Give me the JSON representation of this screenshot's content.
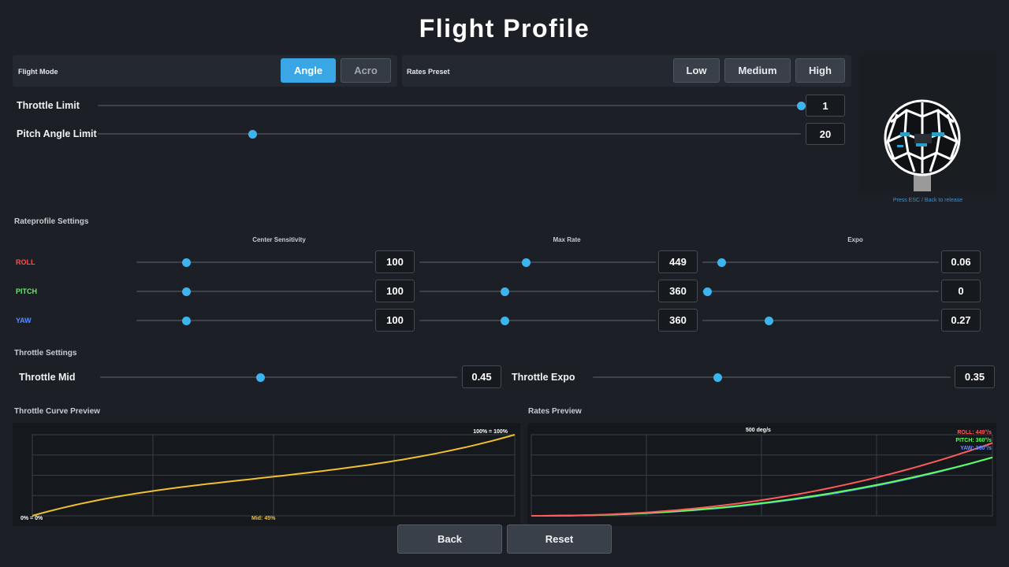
{
  "title": "Flight Profile",
  "flight_mode": {
    "label": "Flight Mode",
    "options": [
      "Angle",
      "Acro"
    ],
    "selected": "Angle"
  },
  "rates_preset": {
    "label": "Rates Preset",
    "options": [
      "Low",
      "Medium",
      "High"
    ]
  },
  "throttle_limit": {
    "label": "Throttle Limit",
    "value": "1",
    "fraction": 1.0
  },
  "pitch_angle_limit": {
    "label": "Pitch Angle Limit",
    "value": "20",
    "fraction": 0.22
  },
  "preview": {
    "hint": "Press ESC / Back to release"
  },
  "rateprofile": {
    "title": "Rateprofile Settings",
    "columns": [
      "Center Sensitivity",
      "Max Rate",
      "Expo"
    ],
    "rows": [
      {
        "name": "ROLL",
        "color": "#ff4d4d",
        "center": "100",
        "center_f": 0.21,
        "max": "449",
        "max_f": 0.45,
        "expo": "0.06",
        "expo_f": 0.08
      },
      {
        "name": "PITCH",
        "color": "#4dff4d",
        "center": "100",
        "center_f": 0.21,
        "max": "360",
        "max_f": 0.36,
        "expo": "0",
        "expo_f": 0.02
      },
      {
        "name": "YAW",
        "color": "#5a8bff",
        "center": "100",
        "center_f": 0.21,
        "max": "360",
        "max_f": 0.36,
        "expo": "0.27",
        "expo_f": 0.28
      }
    ]
  },
  "throttle": {
    "title": "Throttle Settings",
    "mid": {
      "label": "Throttle Mid",
      "value": "0.45",
      "fraction": 0.45
    },
    "expo": {
      "label": "Throttle Expo",
      "value": "0.35",
      "fraction": 0.35
    }
  },
  "throttle_curve": {
    "title": "Throttle Curve Preview",
    "top_label": "100% = 100%",
    "bottom_label": "0% = 0%",
    "mid_label": "Mid: 45%",
    "curve_color": "#f0c030"
  },
  "rates_preview": {
    "title": "Rates Preview",
    "top_label": "500 deg/s",
    "legend": [
      {
        "text": "ROLL: 449°/s",
        "color": "#ff5a5a"
      },
      {
        "text": "PITCH: 360°/s",
        "color": "#5aff5a"
      },
      {
        "text": "YAW: 360°/s",
        "color": "#6a8fff"
      }
    ]
  },
  "buttons": {
    "back": "Back",
    "reset": "Reset"
  }
}
